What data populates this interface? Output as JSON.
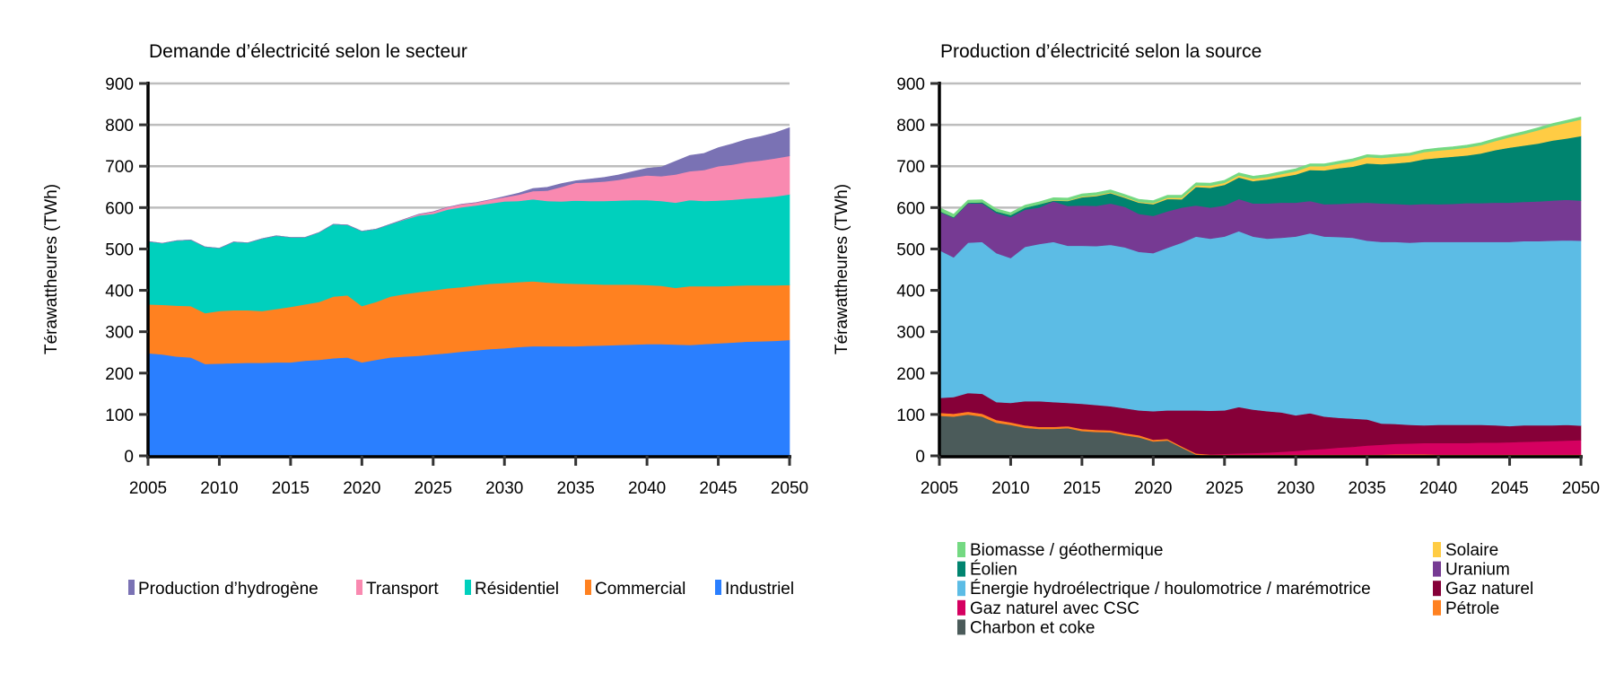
{
  "chart_data": [
    {
      "type": "area",
      "stacked": true,
      "title": "Demande d’électricité selon le secteur",
      "xlabel": "",
      "ylabel": "Térawattheures (TWh)",
      "xlim": [
        2005,
        2050
      ],
      "ylim": [
        0,
        900
      ],
      "x_ticks": [
        2005,
        2010,
        2015,
        2020,
        2025,
        2030,
        2035,
        2040,
        2045,
        2050
      ],
      "y_ticks": [
        0,
        100,
        200,
        300,
        400,
        500,
        600,
        700,
        800,
        900
      ],
      "grid": "horizontal",
      "legend_position": "bottom",
      "x": [
        2005,
        2006,
        2007,
        2008,
        2009,
        2010,
        2011,
        2012,
        2013,
        2014,
        2015,
        2016,
        2017,
        2018,
        2019,
        2020,
        2021,
        2022,
        2023,
        2024,
        2025,
        2026,
        2027,
        2028,
        2029,
        2030,
        2031,
        2032,
        2033,
        2034,
        2035,
        2036,
        2037,
        2038,
        2039,
        2040,
        2041,
        2042,
        2043,
        2044,
        2045,
        2046,
        2047,
        2048,
        2049,
        2050
      ],
      "series": [
        {
          "name": "Industriel",
          "color": "#2a7fff",
          "values": [
            248,
            245,
            240,
            238,
            222,
            223,
            224,
            225,
            225,
            226,
            226,
            230,
            232,
            236,
            238,
            226,
            232,
            238,
            240,
            242,
            245,
            248,
            252,
            255,
            258,
            260,
            263,
            265,
            265,
            265,
            265,
            266,
            267,
            268,
            269,
            270,
            270,
            269,
            268,
            270,
            272,
            274,
            276,
            277,
            278,
            280
          ]
        },
        {
          "name": "Commercial",
          "color": "#ff8120",
          "values": [
            118,
            120,
            123,
            124,
            123,
            127,
            128,
            127,
            125,
            129,
            134,
            136,
            140,
            149,
            150,
            136,
            140,
            147,
            151,
            154,
            155,
            157,
            156,
            157,
            158,
            158,
            157,
            157,
            154,
            152,
            151,
            149,
            147,
            146,
            145,
            143,
            141,
            137,
            142,
            140,
            138,
            137,
            136,
            135,
            134,
            133
          ]
        },
        {
          "name": "Résidentiel",
          "color": "#00d0bd",
          "values": [
            152,
            149,
            157,
            160,
            160,
            152,
            165,
            163,
            175,
            177,
            168,
            162,
            168,
            175,
            170,
            181,
            176,
            175,
            180,
            185,
            185,
            190,
            193,
            193,
            194,
            197,
            196,
            198,
            197,
            198,
            201,
            201,
            202,
            203,
            204,
            205,
            205,
            206,
            208,
            206,
            207,
            208,
            210,
            212,
            215,
            219
          ]
        },
        {
          "name": "Transport",
          "color": "#f989b0",
          "values": [
            0,
            0,
            0,
            0,
            0,
            0,
            0,
            0,
            0,
            0,
            0,
            0,
            0,
            0,
            0,
            0,
            0,
            0,
            1,
            3,
            5,
            6,
            7,
            7,
            9,
            10,
            15,
            20,
            25,
            35,
            43,
            45,
            47,
            50,
            55,
            60,
            60,
            68,
            70,
            75,
            83,
            85,
            88,
            90,
            92,
            93
          ]
        },
        {
          "name": "Production d’hydrogène",
          "color": "#7a72b4",
          "values": [
            0,
            0,
            0,
            0,
            0,
            0,
            0,
            0,
            0,
            0,
            0,
            0,
            0,
            0,
            0,
            0,
            0,
            0,
            0,
            0,
            0,
            0,
            0,
            0,
            0,
            2,
            4,
            6,
            8,
            8,
            5,
            8,
            10,
            12,
            14,
            17,
            22,
            32,
            38,
            40,
            45,
            50,
            55,
            58,
            62,
            68
          ]
        }
      ]
    },
    {
      "type": "area",
      "stacked": true,
      "title": "Production d’électricité selon la source",
      "xlabel": "",
      "ylabel": "Térawattheures (TWh)",
      "xlim": [
        2005,
        2050
      ],
      "ylim": [
        0,
        900
      ],
      "x_ticks": [
        2005,
        2010,
        2015,
        2020,
        2025,
        2030,
        2035,
        2040,
        2045,
        2050
      ],
      "y_ticks": [
        0,
        100,
        200,
        300,
        400,
        500,
        600,
        700,
        800,
        900
      ],
      "grid": "horizontal",
      "legend_position": "bottom",
      "x": [
        2005,
        2006,
        2007,
        2008,
        2009,
        2010,
        2011,
        2012,
        2013,
        2014,
        2015,
        2016,
        2017,
        2018,
        2019,
        2020,
        2021,
        2022,
        2023,
        2024,
        2025,
        2026,
        2027,
        2028,
        2029,
        2030,
        2031,
        2032,
        2033,
        2034,
        2035,
        2036,
        2037,
        2038,
        2039,
        2040,
        2041,
        2042,
        2043,
        2044,
        2045,
        2046,
        2047,
        2048,
        2049,
        2050
      ],
      "series": [
        {
          "name": "Charbon et coke",
          "color": "#4b5b5a",
          "values": [
            97,
            95,
            100,
            95,
            80,
            75,
            68,
            65,
            65,
            67,
            60,
            58,
            57,
            50,
            45,
            35,
            37,
            20,
            3,
            0,
            0,
            0,
            0,
            0,
            0,
            0,
            0,
            0,
            0,
            0,
            0,
            0,
            0,
            0,
            0,
            0,
            0,
            0,
            0,
            0,
            0,
            0,
            0,
            0,
            0,
            0
          ]
        },
        {
          "name": "Pétrole",
          "color": "#ff8120",
          "values": [
            7,
            7,
            7,
            7,
            7,
            6,
            6,
            5,
            5,
            5,
            5,
            5,
            5,
            5,
            5,
            4,
            4,
            3,
            3,
            3,
            3,
            3,
            3,
            3,
            3,
            3,
            3,
            3,
            3,
            3,
            3,
            3,
            4,
            4,
            4,
            3,
            3,
            3,
            3,
            3,
            3,
            3,
            3,
            3,
            3,
            3
          ]
        },
        {
          "name": "Gaz naturel avec CSC",
          "color": "#d50060",
          "values": [
            0,
            0,
            0,
            0,
            0,
            0,
            0,
            0,
            0,
            0,
            0,
            0,
            0,
            0,
            0,
            0,
            0,
            0,
            0,
            1,
            2,
            3,
            4,
            5,
            7,
            9,
            12,
            14,
            17,
            19,
            22,
            24,
            25,
            26,
            27,
            28,
            28,
            28,
            29,
            29,
            30,
            31,
            32,
            33,
            34,
            35
          ]
        },
        {
          "name": "Gaz naturel",
          "color": "#860038",
          "values": [
            36,
            40,
            45,
            48,
            43,
            47,
            58,
            62,
            60,
            56,
            61,
            60,
            58,
            60,
            60,
            69,
            69,
            87,
            104,
            105,
            105,
            112,
            105,
            100,
            95,
            86,
            88,
            78,
            72,
            68,
            63,
            51,
            48,
            45,
            43,
            44,
            44,
            44,
            43,
            42,
            39,
            40,
            39,
            38,
            38,
            35
          ]
        },
        {
          "name": "Énergie hydroélectrique / houlomotrice / marémotrice",
          "color": "#5cbce5",
          "values": [
            357,
            338,
            363,
            367,
            360,
            350,
            373,
            380,
            387,
            380,
            382,
            384,
            390,
            389,
            383,
            382,
            393,
            405,
            420,
            416,
            420,
            425,
            418,
            417,
            422,
            432,
            435,
            435,
            437,
            437,
            432,
            439,
            440,
            440,
            443,
            442,
            442,
            442,
            442,
            443,
            445,
            445,
            445,
            446,
            446,
            447
          ]
        },
        {
          "name": "Uranium",
          "color": "#763a93",
          "values": [
            93,
            95,
            95,
            93,
            97,
            99,
            90,
            88,
            98,
            96,
            97,
            97,
            100,
            98,
            92,
            90,
            88,
            85,
            75,
            75,
            75,
            78,
            80,
            85,
            85,
            82,
            78,
            78,
            80,
            84,
            92,
            93,
            92,
            92,
            92,
            91,
            92,
            94,
            94,
            95,
            95,
            95,
            96,
            97,
            98,
            97
          ]
        },
        {
          "name": "Éolien",
          "color": "#00846f",
          "values": [
            2,
            2,
            2,
            3,
            4,
            5,
            5,
            8,
            2,
            12,
            20,
            24,
            25,
            22,
            27,
            28,
            30,
            20,
            45,
            48,
            50,
            52,
            54,
            58,
            62,
            68,
            75,
            82,
            86,
            88,
            95,
            95,
            98,
            103,
            108,
            112,
            114,
            115,
            120,
            127,
            133,
            136,
            140,
            145,
            148,
            156
          ]
        },
        {
          "name": "Solaire",
          "color": "#ffcc44",
          "values": [
            0,
            0,
            0,
            0,
            0,
            0,
            0,
            0,
            1,
            1,
            2,
            2,
            2,
            2,
            2,
            3,
            3,
            4,
            4,
            5,
            5,
            5,
            6,
            6,
            7,
            8,
            9,
            10,
            11,
            13,
            15,
            15,
            16,
            16,
            17,
            18,
            18,
            19,
            20,
            22,
            25,
            28,
            32,
            35,
            38,
            40
          ]
        },
        {
          "name": "Biomasse / géothermique",
          "color": "#74d982",
          "values": [
            8,
            7,
            6,
            6,
            6,
            6,
            6,
            6,
            6,
            6,
            6,
            6,
            6,
            6,
            6,
            6,
            6,
            6,
            6,
            6,
            6,
            6,
            6,
            6,
            6,
            6,
            6,
            6,
            6,
            6,
            6,
            6,
            6,
            6,
            6,
            6,
            6,
            6,
            6,
            6,
            6,
            6,
            6,
            6,
            6,
            6
          ]
        }
      ]
    }
  ],
  "legends": {
    "left": [
      {
        "label": "Production d’hydrogène",
        "color": "#7a72b4"
      },
      {
        "label": "Transport",
        "color": "#f989b0"
      },
      {
        "label": "Résidentiel",
        "color": "#00d0bd"
      },
      {
        "label": "Commercial",
        "color": "#ff8120"
      },
      {
        "label": "Industriel",
        "color": "#2a7fff"
      }
    ],
    "right_col1": [
      {
        "label": "Biomasse / géothermique",
        "color": "#74d982"
      },
      {
        "label": "Éolien",
        "color": "#00846f"
      },
      {
        "label": "Énergie hydroélectrique / houlomotrice / marémotrice",
        "color": "#5cbce5"
      },
      {
        "label": "Gaz naturel avec CSC",
        "color": "#d50060"
      },
      {
        "label": "Charbon et coke",
        "color": "#4b5b5a"
      }
    ],
    "right_col2": [
      {
        "label": "Solaire",
        "color": "#ffcc44"
      },
      {
        "label": "Uranium",
        "color": "#763a93"
      },
      {
        "label": "Gaz naturel",
        "color": "#860038"
      },
      {
        "label": "Pétrole",
        "color": "#ff8120"
      }
    ]
  }
}
